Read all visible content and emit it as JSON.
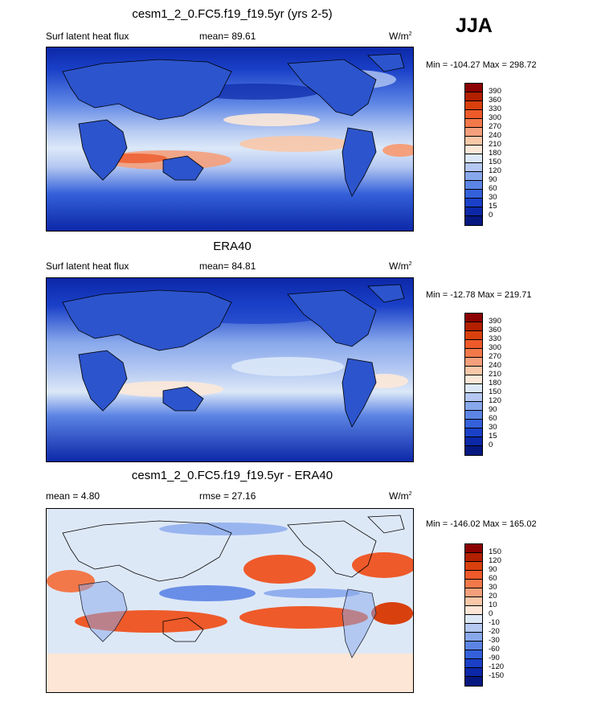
{
  "season": "JJA",
  "panels": [
    {
      "title": "cesm1_2_0.FC5.f19_f19.5yr (yrs 2-5)",
      "left_label": "Surf latent heat flux",
      "mid_label": "mean=  89.61",
      "units": "W/m",
      "units_sup": "2",
      "minmax": "Min = -104.27 Max = 298.72",
      "levels": [
        "390",
        "360",
        "330",
        "300",
        "270",
        "240",
        "210",
        "180",
        "150",
        "120",
        "90",
        "60",
        "30",
        "15",
        "0"
      ]
    },
    {
      "title": "ERA40",
      "left_label": "Surf latent heat flux",
      "mid_label": "mean=  84.81",
      "units": "W/m",
      "units_sup": "2",
      "minmax": "Min = -12.78 Max = 219.71",
      "levels": [
        "390",
        "360",
        "330",
        "300",
        "270",
        "240",
        "210",
        "180",
        "150",
        "120",
        "90",
        "60",
        "30",
        "15",
        "0"
      ]
    },
    {
      "title": "cesm1_2_0.FC5.f19_f19.5yr - ERA40",
      "left_label": "mean =   4.80",
      "mid_label": "rmse =  27.16",
      "units": "W/m",
      "units_sup": "2",
      "minmax": "Min = -146.02 Max = 165.02",
      "levels": [
        "150",
        "120",
        "90",
        "60",
        "30",
        "20",
        "10",
        "0",
        "-10",
        "-20",
        "-30",
        "-60",
        "-90",
        "-120",
        "-150"
      ]
    }
  ],
  "colors": {
    "abs_scale": [
      "#8b0000",
      "#b22000",
      "#d8400e",
      "#ee5a2a",
      "#f2784a",
      "#f5a07c",
      "#f8c8a8",
      "#fce8d8",
      "#dce8f8",
      "#b4c8f2",
      "#88a8ec",
      "#5c84e4",
      "#3460da",
      "#1a40c8",
      "#0c28a8",
      "#061880"
    ],
    "diff_scale": [
      "#8b0000",
      "#b22000",
      "#d8400e",
      "#ee5a2a",
      "#f2784a",
      "#f5a07c",
      "#f8c8a8",
      "#fde6d6",
      "#dde8f7",
      "#b4c8f2",
      "#88a8ec",
      "#5c84e4",
      "#3460da",
      "#1a40c8",
      "#0c28a8",
      "#061880"
    ]
  }
}
